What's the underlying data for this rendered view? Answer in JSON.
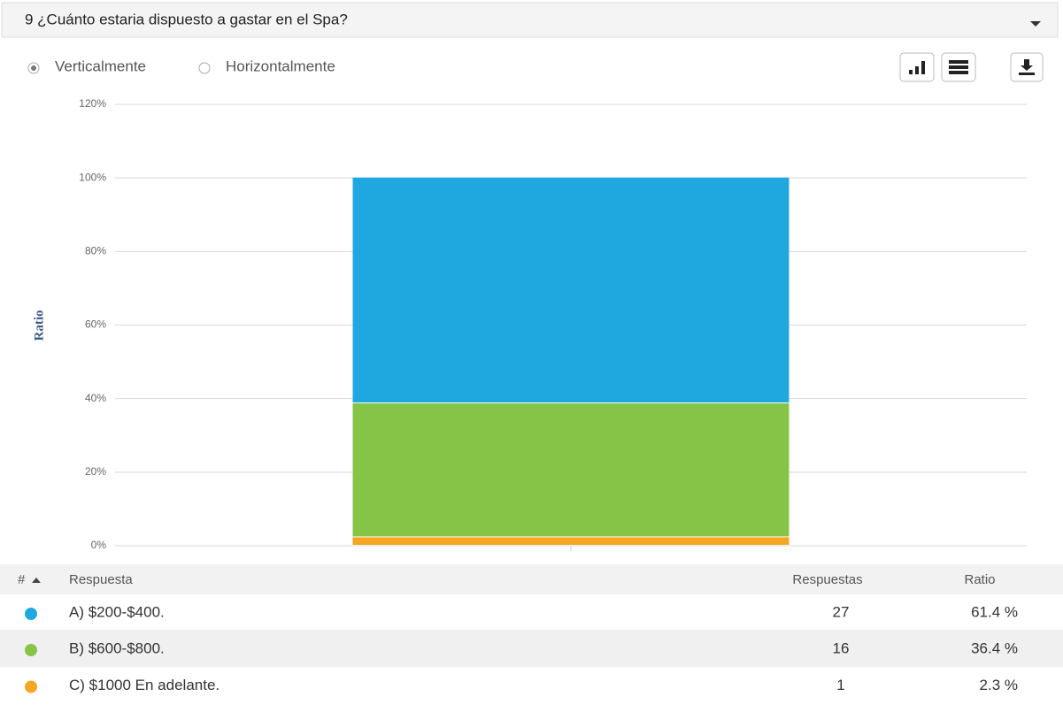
{
  "header": {
    "title": "9 ¿Cuánto estaria dispuesto a gastar en el Spa?"
  },
  "options": [
    "Verticalmente",
    "Horizontalmente"
  ],
  "chart_data": {
    "type": "bar",
    "stacked": true,
    "y_label": "Ratio",
    "categories": [
      null
    ],
    "series": [
      {
        "name": "C) $1000 En adelante.",
        "color": "#f5a623",
        "values": [
          2.3
        ],
        "value_labels": [
          "2.3 %"
        ]
      },
      {
        "name": "B) $600-$800.",
        "color": "#86c448",
        "values": [
          36.4
        ],
        "value_labels": [
          "36.4 %"
        ]
      },
      {
        "name": "A) $200-$400.",
        "color": "#1fa8e0",
        "values": [
          61.4
        ],
        "value_labels": [
          "61.4 %"
        ]
      }
    ],
    "ylim": [
      0,
      120
    ],
    "yticks": [
      {
        "value": 0,
        "label": "0%"
      },
      {
        "value": 20,
        "label": "20%"
      },
      {
        "value": 40,
        "label": "40%"
      },
      {
        "value": 60,
        "label": "60%"
      },
      {
        "value": 80,
        "label": "80%"
      },
      {
        "value": 100,
        "label": "100%"
      },
      {
        "value": 120,
        "label": "120%"
      }
    ],
    "grid": true
  },
  "table": {
    "columns": [
      "#",
      "Respuesta",
      "Respuestas",
      "Ratio"
    ],
    "rows": [
      {
        "series": 2,
        "count": 27
      },
      {
        "series": 1,
        "count": 16
      },
      {
        "series": 0,
        "count": 1
      }
    ]
  }
}
